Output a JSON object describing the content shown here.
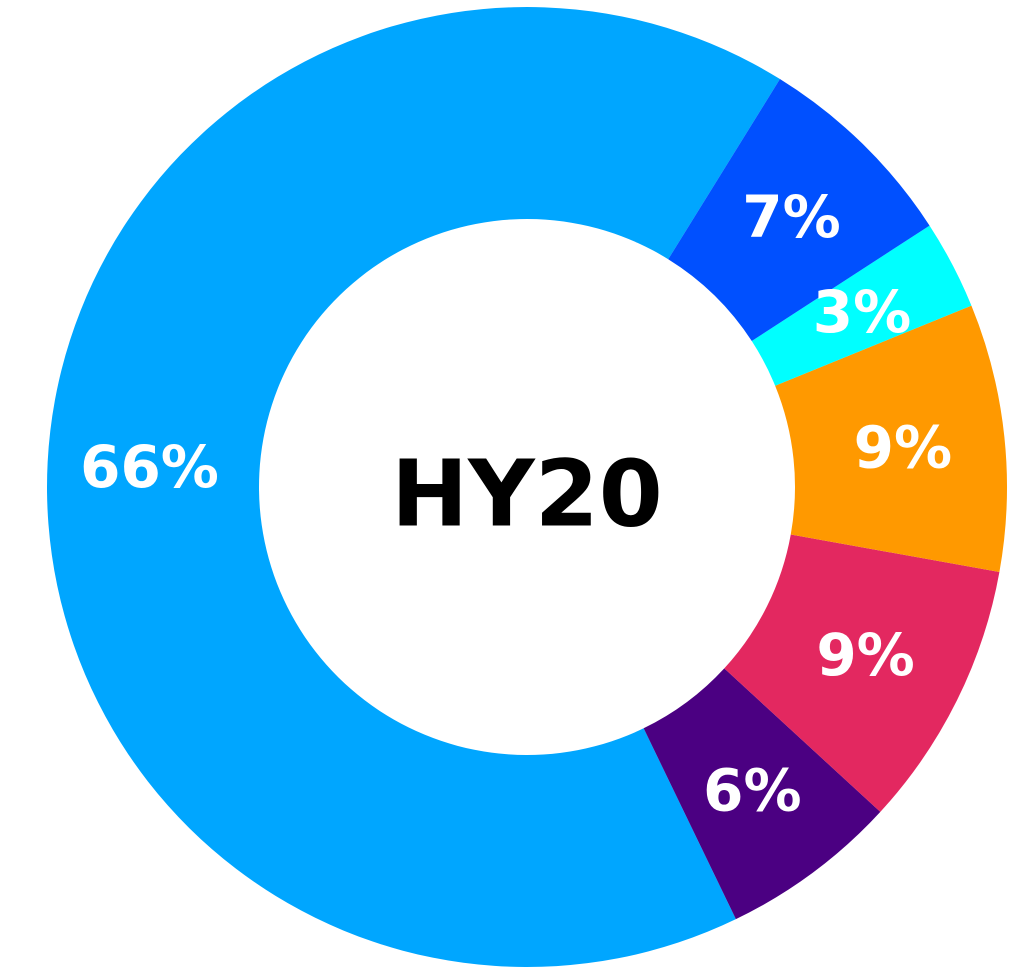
{
  "chart_data": {
    "type": "donut",
    "title": "HY20",
    "values": [
      7,
      3,
      9,
      9,
      6,
      66
    ],
    "value_labels": [
      "7%",
      "3%",
      "9%",
      "9%",
      "6%",
      "66%"
    ],
    "colors": [
      "#0050ff",
      "#00ffff",
      "#ff9900",
      "#e32860",
      "#4b0082",
      "#00a6ff"
    ]
  }
}
